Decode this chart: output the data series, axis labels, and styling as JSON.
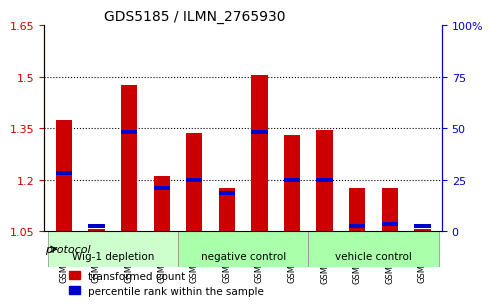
{
  "title": "GDS5185 / ILMN_2765930",
  "samples": [
    "GSM737540",
    "GSM737541",
    "GSM737542",
    "GSM737543",
    "GSM737544",
    "GSM737545",
    "GSM737546",
    "GSM737547",
    "GSM737536",
    "GSM737537",
    "GSM737538",
    "GSM737539"
  ],
  "red_values": [
    1.375,
    1.055,
    1.475,
    1.21,
    1.335,
    1.175,
    1.505,
    1.33,
    1.345,
    1.175,
    1.175,
    1.055
  ],
  "blue_values": [
    1.22,
    1.065,
    1.34,
    1.175,
    1.2,
    1.16,
    1.34,
    1.2,
    1.2,
    1.065,
    1.07,
    1.065
  ],
  "ylim_left": [
    1.05,
    1.65
  ],
  "ylim_right": [
    0,
    100
  ],
  "yticks_left": [
    1.05,
    1.2,
    1.35,
    1.5,
    1.65
  ],
  "yticks_right": [
    0,
    25,
    50,
    75,
    100
  ],
  "ytick_labels_left": [
    "1.05",
    "1.2",
    "1.35",
    "1.5",
    "1.65"
  ],
  "ytick_labels_right": [
    "0",
    "25",
    "50",
    "75",
    "100%"
  ],
  "groups": [
    {
      "label": "Wig-1 depletion",
      "indices": [
        0,
        1,
        2,
        3
      ],
      "color": "#ccffcc"
    },
    {
      "label": "negative control",
      "indices": [
        4,
        5,
        6,
        7
      ],
      "color": "#99ff99"
    },
    {
      "label": "vehicle control",
      "indices": [
        8,
        9,
        10,
        11
      ],
      "color": "#99ff99"
    }
  ],
  "group_colors": [
    "#ccffcc",
    "#99ff99",
    "#99ff99"
  ],
  "bar_color": "#cc0000",
  "blue_color": "#0000cc",
  "bar_width": 0.5,
  "base_value": 1.05,
  "legend_red": "transformed count",
  "legend_blue": "percentile rank within the sample",
  "protocol_label": "protocol",
  "background_color": "#ffffff",
  "plot_bg_color": "#ffffff",
  "grid_color": "#000000",
  "tick_color_left": "#cc0000",
  "tick_color_right": "#0000cc"
}
